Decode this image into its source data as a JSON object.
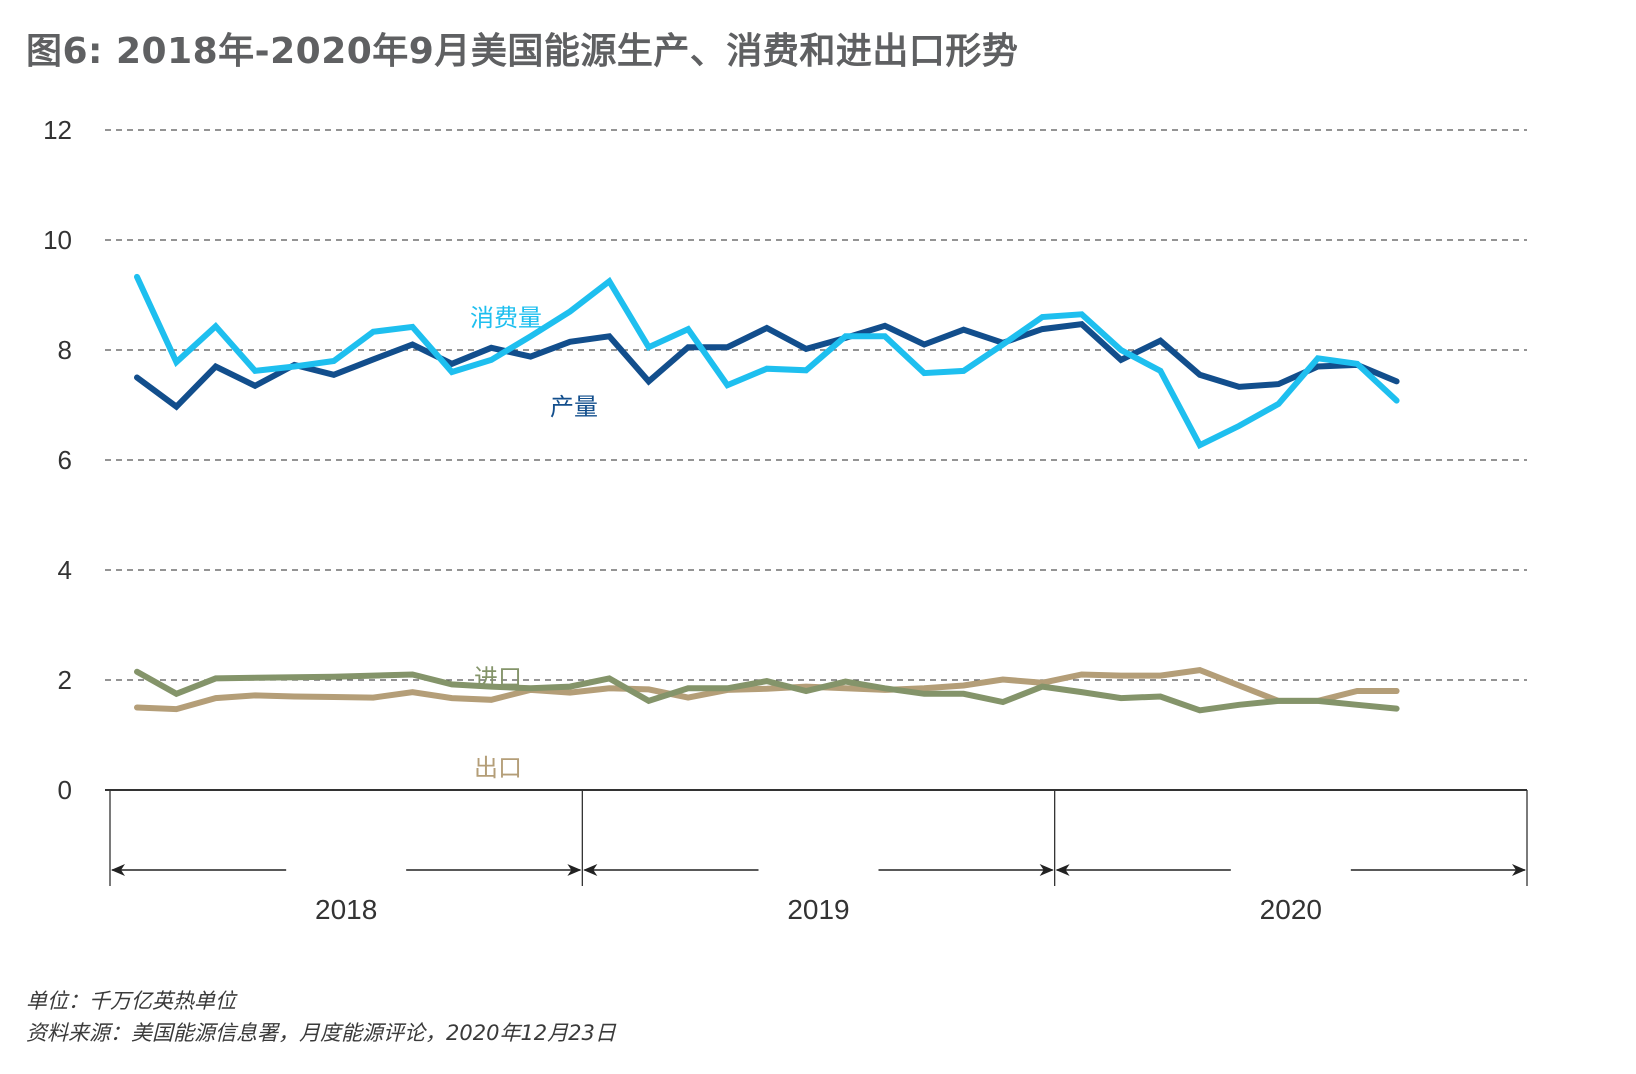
{
  "title": "图6: 2018年-2020年9月美国能源生产、消费和进出口形势",
  "footnotes": {
    "unit": "单位：千万亿英热单位",
    "source": "资料来源：美国能源信息署，月度能源评论，2020年12月23日"
  },
  "colors": {
    "consumption": "#1ebfef",
    "production": "#124e8c",
    "imports": "#84946a",
    "exports": "#b49e78",
    "grid": "#555555",
    "axis": "#333333"
  },
  "chart_data": {
    "type": "line",
    "title": "图6: 2018年-2020年9月美国能源生产、消费和进出口形势",
    "xlabel": "",
    "ylabel": "千万亿英热单位",
    "ylim": [
      0,
      12
    ],
    "yticks": [
      "0",
      "2",
      "4",
      "6",
      "8",
      "10",
      "12"
    ],
    "grid": true,
    "x_groups": [
      "2018",
      "2019",
      "2020"
    ],
    "x": [
      "2018-01",
      "2018-02",
      "2018-03",
      "2018-04",
      "2018-05",
      "2018-06",
      "2018-07",
      "2018-08",
      "2018-09",
      "2018-10",
      "2018-11",
      "2018-12",
      "2019-01",
      "2019-02",
      "2019-03",
      "2019-04",
      "2019-05",
      "2019-06",
      "2019-07",
      "2019-08",
      "2019-09",
      "2019-10",
      "2019-11",
      "2019-12",
      "2020-01",
      "2020-02",
      "2020-03",
      "2020-04",
      "2020-05",
      "2020-06",
      "2020-07",
      "2020-08",
      "2020-09"
    ],
    "series": [
      {
        "name": "消费量",
        "key": "consumption",
        "values": [
          9.33,
          7.78,
          8.43,
          7.62,
          7.7,
          7.8,
          8.33,
          8.42,
          7.6,
          7.82,
          8.25,
          8.7,
          9.25,
          8.05,
          8.38,
          7.36,
          7.66,
          7.63,
          8.25,
          8.25,
          7.58,
          7.62,
          8.1,
          8.6,
          8.65,
          8.0,
          7.62,
          6.27,
          6.62,
          7.02,
          7.85,
          7.75,
          7.08
        ]
      },
      {
        "name": "产量",
        "key": "production",
        "values": [
          7.5,
          6.97,
          7.7,
          7.35,
          7.73,
          7.55,
          7.83,
          8.1,
          7.75,
          8.04,
          7.88,
          8.15,
          8.25,
          7.43,
          8.05,
          8.05,
          8.4,
          8.02,
          8.22,
          8.44,
          8.1,
          8.37,
          8.13,
          8.38,
          8.47,
          7.82,
          8.17,
          7.55,
          7.33,
          7.38,
          7.7,
          7.73,
          7.43
        ]
      },
      {
        "name": "进口",
        "key": "imports",
        "values": [
          2.15,
          1.75,
          2.03,
          2.04,
          2.05,
          2.06,
          2.08,
          2.1,
          1.92,
          1.88,
          1.85,
          1.88,
          2.03,
          1.62,
          1.85,
          1.85,
          1.98,
          1.8,
          1.97,
          1.85,
          1.75,
          1.75,
          1.6,
          1.88,
          1.78,
          1.67,
          1.7,
          1.45,
          1.55,
          1.62,
          1.62,
          1.55,
          1.48
        ]
      },
      {
        "name": "出口",
        "key": "exports",
        "values": [
          1.5,
          1.47,
          1.67,
          1.72,
          1.7,
          1.69,
          1.68,
          1.78,
          1.67,
          1.64,
          1.82,
          1.77,
          1.85,
          1.83,
          1.68,
          1.82,
          1.84,
          1.88,
          1.85,
          1.82,
          1.85,
          1.9,
          2.01,
          1.95,
          2.1,
          2.08,
          2.08,
          2.18,
          1.9,
          1.62,
          1.62,
          1.8,
          1.8
        ]
      }
    ],
    "annotations": [
      {
        "text": "消费量",
        "series": "consumption"
      },
      {
        "text": "产量",
        "series": "production"
      },
      {
        "text": "进口",
        "series": "imports"
      },
      {
        "text": "出口",
        "series": "exports"
      }
    ]
  }
}
